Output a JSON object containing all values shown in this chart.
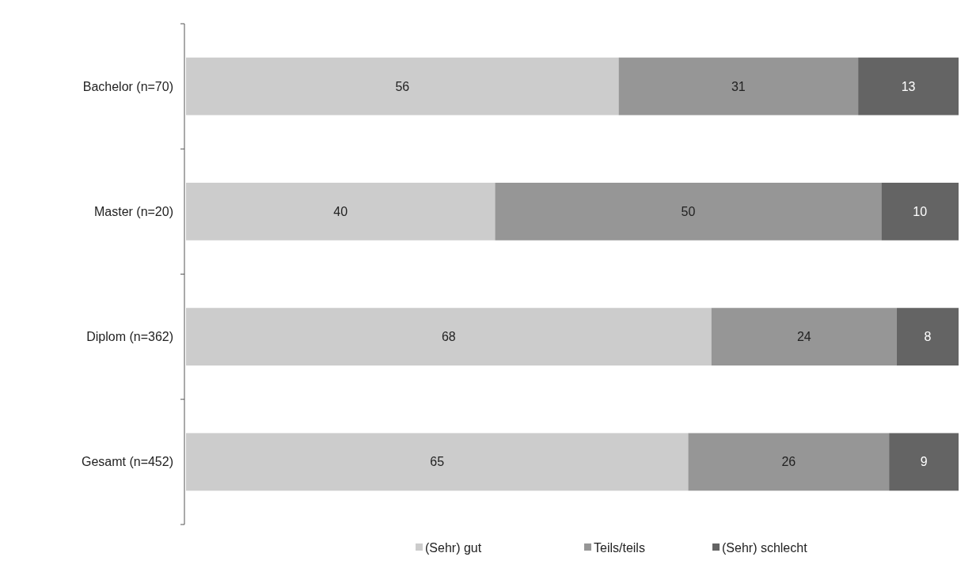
{
  "chart_data": {
    "type": "bar",
    "orientation": "horizontal",
    "stacked": true,
    "data_labels": true,
    "legend": "bottom",
    "tick_labels": "y",
    "xlim": [
      0,
      100
    ],
    "categories": [
      "Bachelor (n=70)",
      "Master (n=20)",
      "Diplom (n=362)",
      "Gesamt (n=452)"
    ],
    "series": [
      {
        "name": "(Sehr) gut",
        "color": "#cccccc",
        "values": [
          56,
          40,
          68,
          65
        ]
      },
      {
        "name": "Teils/teils",
        "color": "#969696",
        "values": [
          31,
          50,
          24,
          26
        ]
      },
      {
        "name": "(Sehr) schlecht",
        "color": "#646464",
        "values": [
          13,
          10,
          8,
          9
        ]
      }
    ]
  }
}
